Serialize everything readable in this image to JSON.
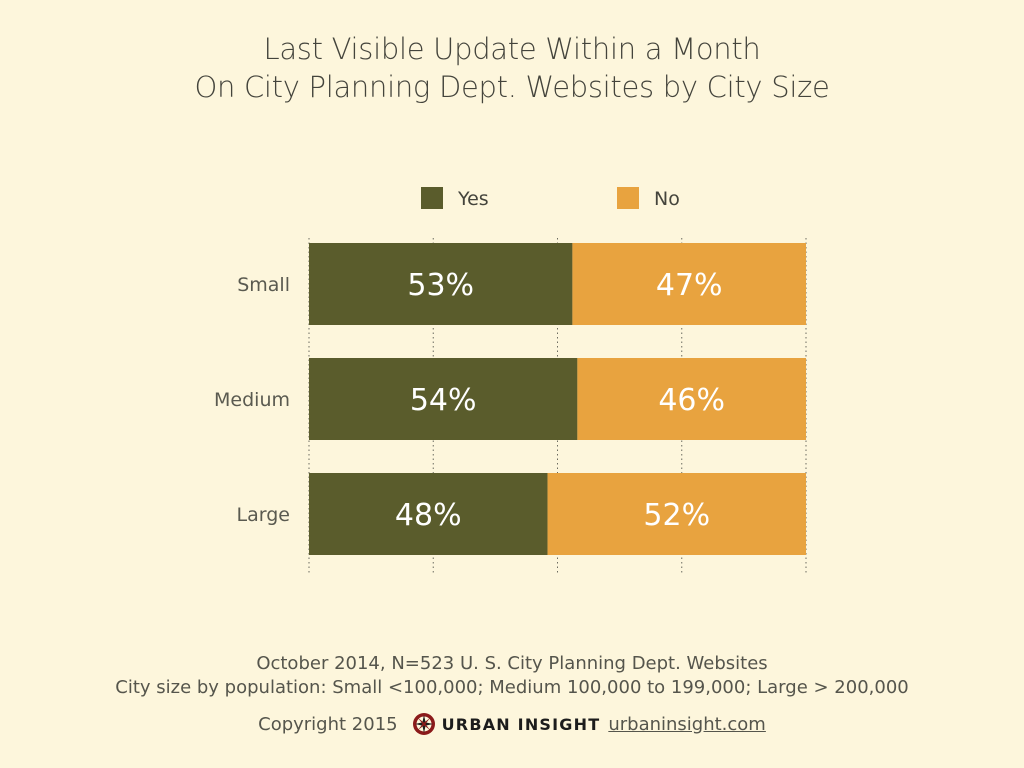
{
  "title": {
    "line1": "Last Visible Update Within a Month",
    "line2": "On City Planning Dept. Websites by City Size"
  },
  "legend": [
    {
      "label": "Yes",
      "color": "#5a5c2c"
    },
    {
      "label": "No",
      "color": "#e8a33f"
    }
  ],
  "chart_data": {
    "type": "bar",
    "orientation": "horizontal",
    "stacked": true,
    "categories": [
      "Small",
      "Medium",
      "Large"
    ],
    "series": [
      {
        "name": "Yes",
        "values": [
          53,
          54,
          48
        ],
        "labels": [
          "53%",
          "54%",
          "48%"
        ],
        "color": "#5a5c2c"
      },
      {
        "name": "No",
        "values": [
          47,
          46,
          52
        ],
        "labels": [
          "47%",
          "46%",
          "52%"
        ],
        "color": "#e8a33f"
      }
    ],
    "xlim": [
      0,
      100
    ],
    "grid": "dotted vertical",
    "legend_position": "top"
  },
  "footer": {
    "line1": "October 2014, N=523 U. S. City Planning Dept. Websites",
    "line2": "City size by population:  Small <100,000; Medium 100,000 to 199,000; Large > 200,000",
    "copyright": "Copyright 2015",
    "brand": "URBAN INSIGHT",
    "link": "urbaninsight.com"
  },
  "icons": {
    "logo": "compass-logo-icon"
  }
}
